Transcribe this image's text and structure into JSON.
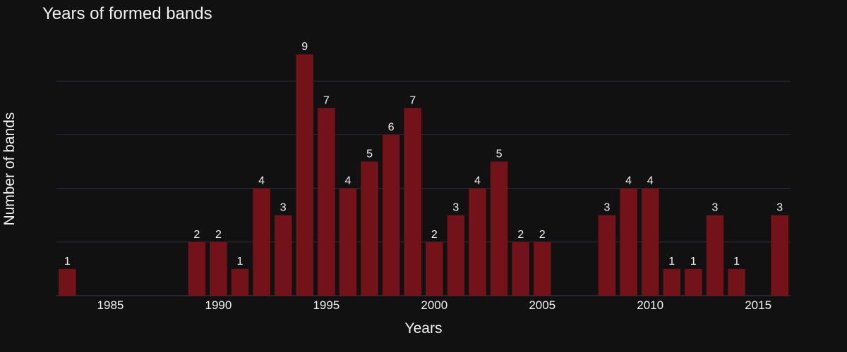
{
  "chart_data": {
    "type": "bar",
    "title": "Years of formed bands",
    "xlabel": "Years",
    "ylabel": "Number of bands",
    "x": [
      1983,
      1989,
      1990,
      1991,
      1992,
      1993,
      1994,
      1995,
      1996,
      1997,
      1998,
      1999,
      2000,
      2001,
      2002,
      2003,
      2004,
      2005,
      2008,
      2009,
      2010,
      2011,
      2012,
      2013,
      2014,
      2016
    ],
    "values": [
      1,
      2,
      2,
      1,
      4,
      3,
      9,
      7,
      4,
      5,
      6,
      7,
      2,
      3,
      4,
      5,
      2,
      2,
      3,
      4,
      4,
      1,
      1,
      3,
      1,
      3
    ],
    "xlim": [
      1982.5,
      2016.5
    ],
    "ylim": [
      0,
      9.45
    ],
    "xticks": [
      1985,
      1990,
      1995,
      2000,
      2005,
      2010,
      2015
    ],
    "yticks_gridlines": [
      2,
      4,
      6,
      8
    ],
    "ytick_labels_shown": false,
    "data_labels": true,
    "grid": true
  },
  "colors": {
    "background": "#111111",
    "bar": "#731319",
    "grid": "#2e2e3a",
    "axis_line": "#3a3f4a",
    "text": "#f2f2f2"
  }
}
